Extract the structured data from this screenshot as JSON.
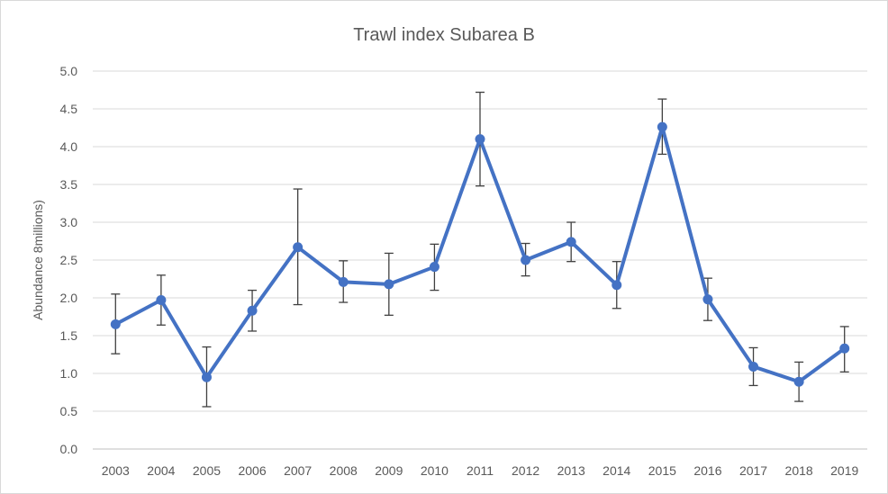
{
  "chart_data": {
    "type": "line",
    "title": "Trawl index Subarea B",
    "xlabel": "",
    "ylabel": "Abundance 8millions)",
    "categories": [
      "2003",
      "2004",
      "2005",
      "2006",
      "2007",
      "2008",
      "2009",
      "2010",
      "2011",
      "2012",
      "2013",
      "2014",
      "2015",
      "2016",
      "2017",
      "2018",
      "2019"
    ],
    "series": [
      {
        "values": [
          1.65,
          1.97,
          0.95,
          1.83,
          2.67,
          2.21,
          2.18,
          2.41,
          4.1,
          2.5,
          2.74,
          2.17,
          4.26,
          1.98,
          1.09,
          0.89,
          1.33
        ],
        "error_low": [
          1.26,
          1.64,
          0.56,
          1.56,
          1.91,
          1.94,
          1.77,
          2.1,
          3.48,
          2.29,
          2.48,
          1.86,
          3.9,
          1.7,
          0.84,
          0.63,
          1.02
        ],
        "error_high": [
          2.05,
          2.3,
          1.35,
          2.1,
          3.44,
          2.49,
          2.59,
          2.71,
          4.72,
          2.72,
          3.0,
          2.48,
          4.63,
          2.26,
          1.34,
          1.15,
          1.62
        ],
        "color": "#4472c4"
      }
    ],
    "ylim": [
      0,
      5
    ],
    "ytick_labels": [
      "0.0",
      "0.5",
      "1.0",
      "1.5",
      "2.0",
      "2.5",
      "3.0",
      "3.5",
      "4.0",
      "4.5",
      "5.0"
    ],
    "grid": true,
    "legend": "none",
    "error_bar_color": "#404040"
  }
}
